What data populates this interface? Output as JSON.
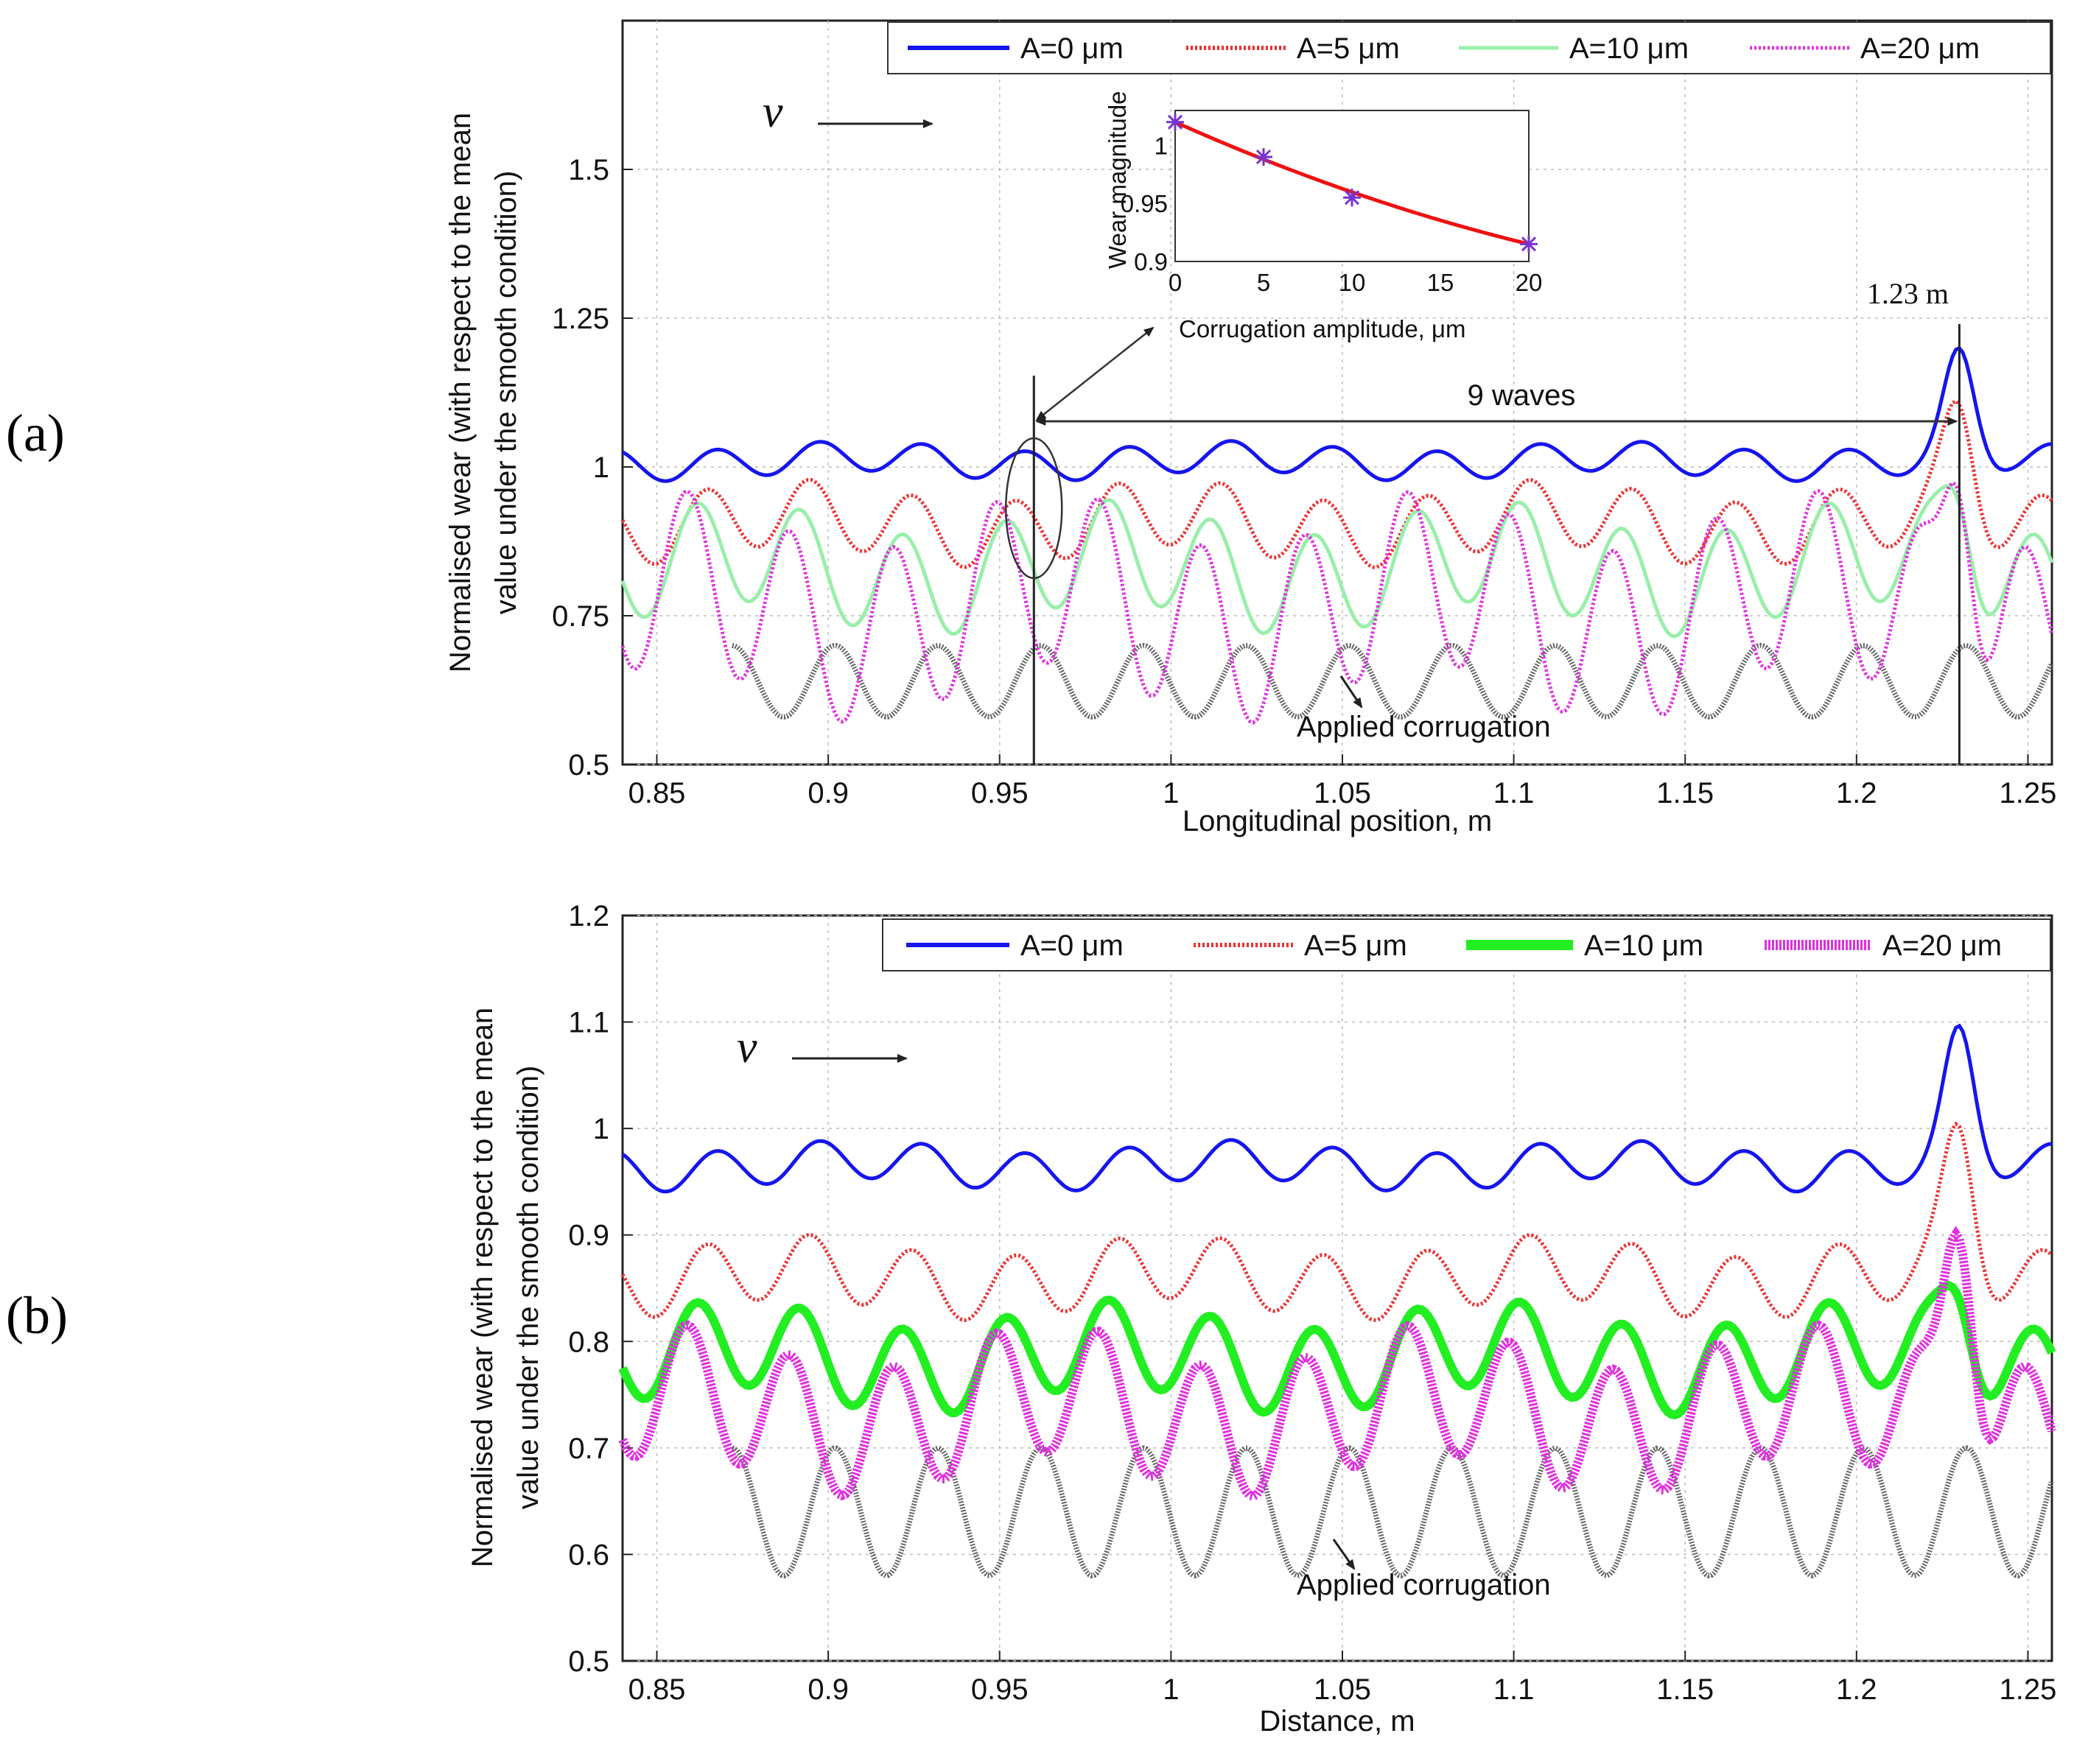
{
  "chart_data": [
    {
      "panel": "a",
      "panel_label": "(a)",
      "type": "line",
      "xlabel": "Longitudinal position, m",
      "ylabel_line1": "Normalised wear (with respect to the mean",
      "ylabel_line2": "value under the smooth condition)",
      "xlim": [
        0.84,
        1.257
      ],
      "ylim": [
        0.5,
        1.75
      ],
      "xticks": [
        0.85,
        0.9,
        0.95,
        1,
        1.05,
        1.1,
        1.15,
        1.2,
        1.25
      ],
      "xtick_labels": [
        "0.85",
        "0.9",
        "0.95",
        "1",
        "1.05",
        "1.1",
        "1.15",
        "1.2",
        "1.25"
      ],
      "yticks": [
        0.5,
        0.75,
        1,
        1.25,
        1.5
      ],
      "ytick_labels": [
        "0.5",
        "0.75",
        "1",
        "1.25",
        "1.5"
      ],
      "legend_position": "top-right",
      "series": [
        {
          "name": "A=0 μm",
          "color": "#1515ee",
          "style": "solid",
          "base": 1.01,
          "amp": 0.025,
          "bump": 0.16
        },
        {
          "name": "A=5 μm",
          "color": "#ee3030",
          "style": "dotted",
          "base": 0.905,
          "amp": 0.055,
          "bump": 0.16
        },
        {
          "name": "A=10 μm",
          "color": "#99eeaa",
          "style": "solid",
          "base": 0.83,
          "amp": 0.085,
          "bump": 0.12
        },
        {
          "name": "A=20 μm",
          "color": "#e030e0",
          "style": "dotted",
          "base": 0.765,
          "amp": 0.145,
          "bump": 0.33
        }
      ],
      "corrugation": {
        "label": "Applied corrugation",
        "x_start": 0.872,
        "wavelength": 0.03,
        "mean": 0.64,
        "half_amp": 0.06,
        "color": "#666666"
      },
      "annotations": {
        "nine_waves": "9 waves",
        "peak_position": "1.23 m",
        "x_start_line": 0.96,
        "x_end_line": 1.23,
        "velocity": "v"
      },
      "inset": {
        "xlabel": "Corrugation amplitude, μm",
        "ylabel": "Wear magnitude",
        "x": [
          0,
          5,
          10,
          20
        ],
        "y": [
          1.02,
          0.99,
          0.955,
          0.915
        ],
        "xlim": [
          0,
          20
        ],
        "ylim": [
          0.9,
          1.03
        ],
        "xtick_labels": [
          "0",
          "5",
          "10",
          "15",
          "20"
        ],
        "ytick_labels": [
          "0.9",
          "0.95",
          "1"
        ]
      }
    },
    {
      "panel": "b",
      "panel_label": "(b)",
      "type": "line",
      "xlabel": "Distance, m",
      "ylabel_line1": "Normalised wear (with respect to the mean",
      "ylabel_line2": "value under the smooth condition)",
      "xlim": [
        0.84,
        1.257
      ],
      "ylim": [
        0.5,
        1.2
      ],
      "xticks": [
        0.85,
        0.9,
        0.95,
        1,
        1.05,
        1.1,
        1.15,
        1.2,
        1.25
      ],
      "xtick_labels": [
        "0.85",
        "0.9",
        "0.95",
        "1",
        "1.05",
        "1.1",
        "1.15",
        "1.2",
        "1.25"
      ],
      "yticks": [
        0.5,
        0.6,
        0.7,
        0.8,
        0.9,
        1,
        1.1,
        1.2
      ],
      "ytick_labels": [
        "0.5",
        "0.6",
        "0.7",
        "0.8",
        "0.9",
        "1",
        "1.1",
        "1.2"
      ],
      "legend_position": "top-right",
      "series": [
        {
          "name": "A=0 μm",
          "color": "#1515ee",
          "style": "solid",
          "base": 0.965,
          "amp": 0.018,
          "bump": 0.11
        },
        {
          "name": "A=5 μm",
          "color": "#ee3030",
          "style": "dotted",
          "base": 0.86,
          "amp": 0.03,
          "bump": 0.12
        },
        {
          "name": "A=10 μm",
          "color": "#22ee22",
          "style": "thick",
          "base": 0.785,
          "amp": 0.04,
          "bump": 0.06
        },
        {
          "name": "A=20 μm",
          "color": "#e030e0",
          "style": "thickdotted",
          "base": 0.735,
          "amp": 0.06,
          "bump": 0.22
        }
      ],
      "corrugation": {
        "label": "Applied corrugation",
        "x_start": 0.872,
        "wavelength": 0.03,
        "mean": 0.64,
        "half_amp": 0.06,
        "color": "#666666"
      },
      "annotations": {
        "velocity": "v"
      }
    }
  ]
}
